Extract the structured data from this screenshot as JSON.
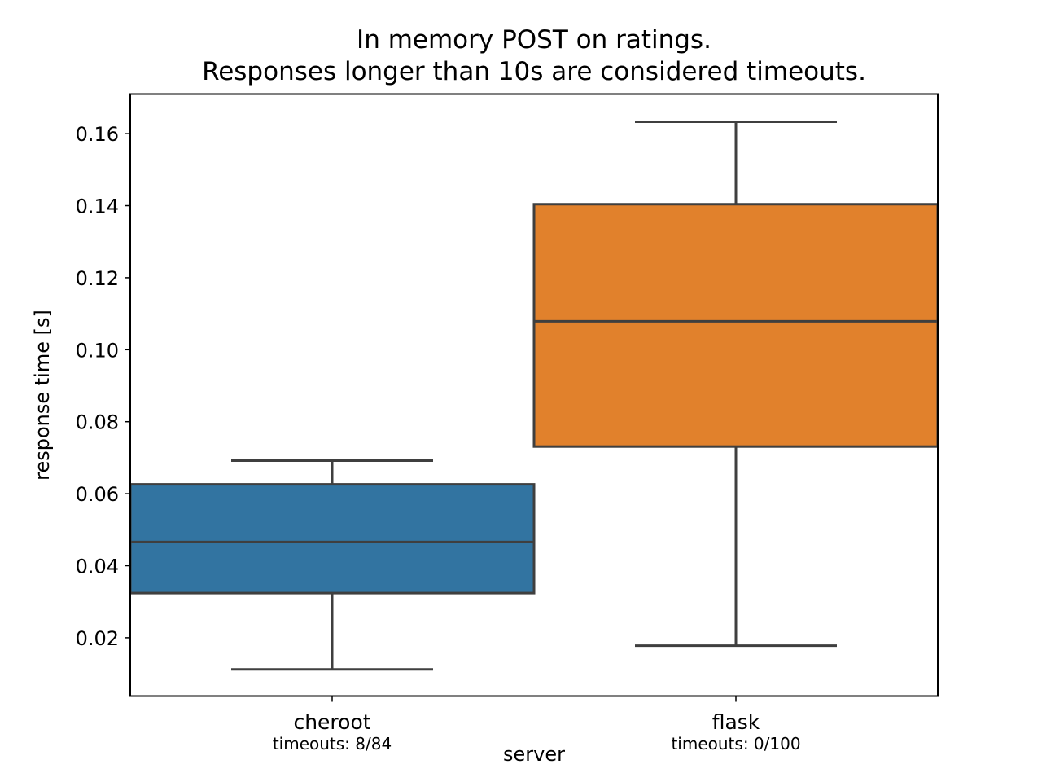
{
  "chart_data": {
    "type": "box",
    "title_line1": "In memory POST on ratings.",
    "title_line2": "Responses longer than 10s are considered timeouts.",
    "xlabel": "server",
    "ylabel": "response time [s]",
    "ylim": [
      0.0038,
      0.171
    ],
    "yticks": [
      "0.02",
      "0.04",
      "0.06",
      "0.08",
      "0.10",
      "0.12",
      "0.14",
      "0.16"
    ],
    "ytick_values": [
      0.02,
      0.04,
      0.06,
      0.08,
      0.1,
      0.12,
      0.14,
      0.16
    ],
    "grid": false,
    "categories": [
      "cheroot",
      "flask"
    ],
    "category_subtitles": [
      "timeouts: 8/84",
      "timeouts: 0/100"
    ],
    "boxes": [
      {
        "category": "cheroot",
        "whisker_low": 0.0112,
        "q1": 0.0324,
        "median": 0.0466,
        "q3": 0.0626,
        "whisker_high": 0.0692,
        "color": "#3274a1"
      },
      {
        "category": "flask",
        "whisker_low": 0.0178,
        "q1": 0.0731,
        "median": 0.1079,
        "q3": 0.1404,
        "whisker_high": 0.1633,
        "color": "#e1812c"
      }
    ],
    "edge_color": "#3f3f3f"
  }
}
